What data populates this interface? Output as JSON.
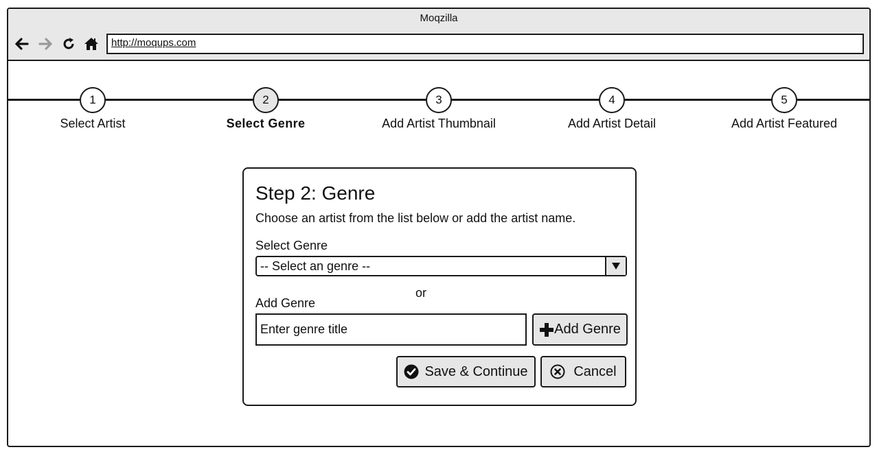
{
  "window": {
    "title": "Moqzilla",
    "url": "http://moqups.com"
  },
  "toolbar": {
    "back_icon": "arrow-left-icon",
    "forward_icon": "arrow-right-icon",
    "reload_icon": "reload-icon",
    "home_icon": "home-icon"
  },
  "stepper": {
    "active_step": 2,
    "steps": [
      {
        "number": "1",
        "label": "Select Artist"
      },
      {
        "number": "2",
        "label": "Select Genre"
      },
      {
        "number": "3",
        "label": "Add Artist Thumbnail"
      },
      {
        "number": "4",
        "label": "Add Artist Detail"
      },
      {
        "number": "5",
        "label": "Add Artist Featured"
      }
    ]
  },
  "form": {
    "title": "Step 2: Genre",
    "description": "Choose an artist from the list below or add the artist name.",
    "select_label": "Select Genre",
    "select_value": "-- Select an genre --",
    "or_text": "or",
    "add_label": "Add Genre",
    "add_placeholder": "Enter genre title",
    "add_button": "Add Genre",
    "save_button": "Save & Continue",
    "cancel_button": "Cancel"
  },
  "colors": {
    "chrome_bg": "#e8e8e8",
    "button_bg": "#e6e6e6",
    "border": "#1a1a1a"
  }
}
